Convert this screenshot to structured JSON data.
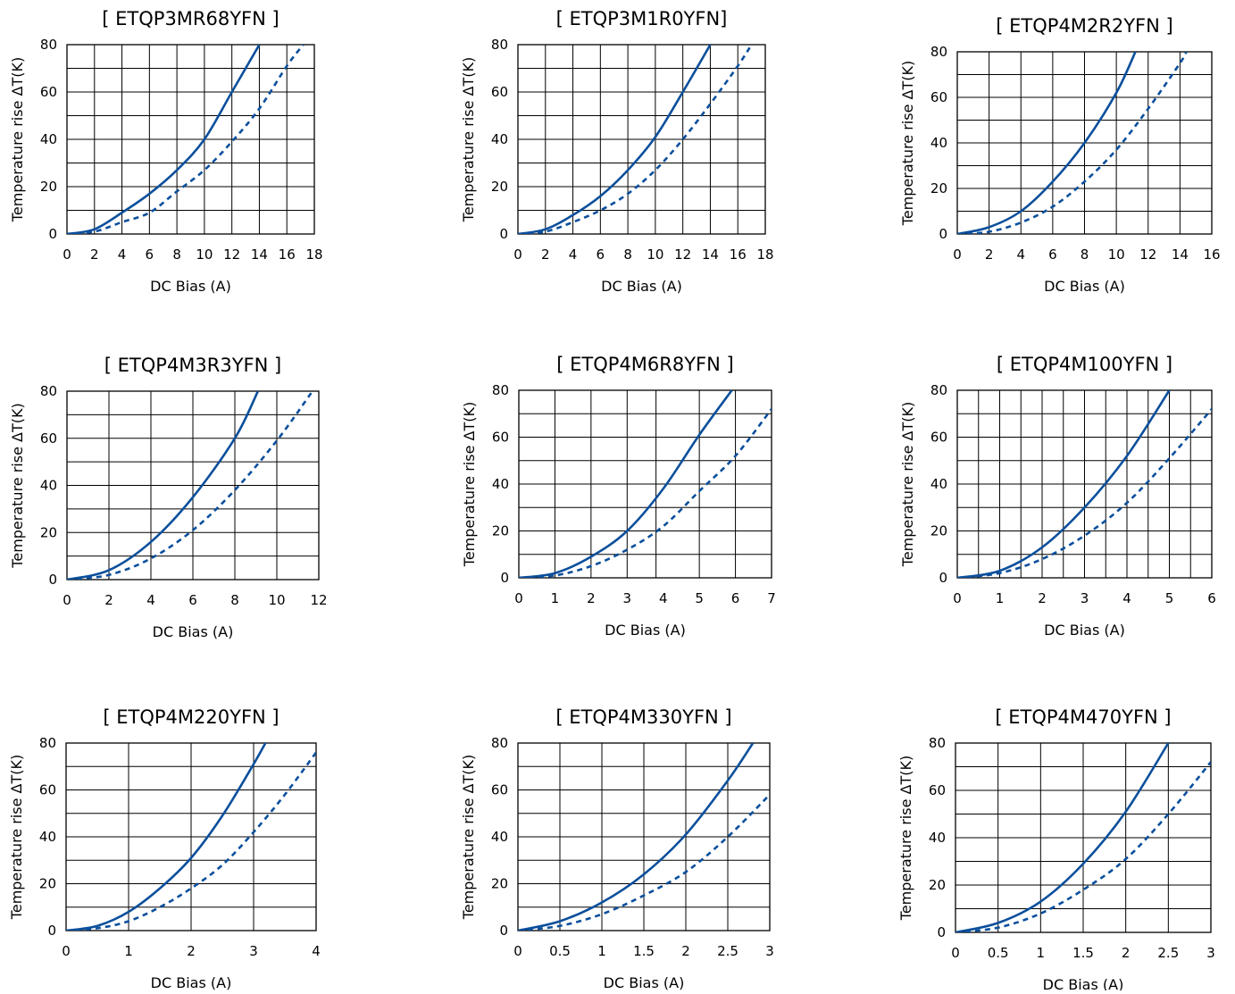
{
  "chart_data": [
    {
      "type": "line",
      "title": "[ ETQP3MR68YFN ]",
      "xlabel": "DC Bias (A)",
      "ylabel": "Temperature rise ΔT(K)",
      "xlim": [
        0,
        18
      ],
      "ylim": [
        0,
        80
      ],
      "x_ticks": [
        "0",
        "2",
        "4",
        "6",
        "8",
        "10",
        "12",
        "14",
        "16",
        "18"
      ],
      "y_ticks": [
        "0",
        "20",
        "40",
        "60",
        "80"
      ],
      "x_grid": [
        0,
        2,
        4,
        6,
        8,
        10,
        12,
        14,
        16,
        18
      ],
      "y_grid": [
        0,
        10,
        20,
        30,
        40,
        50,
        60,
        70,
        80
      ],
      "grid": true,
      "legend": "none",
      "series": [
        {
          "style": "solid",
          "x": [
            0,
            2,
            4,
            6,
            8,
            10,
            12,
            14
          ],
          "y": [
            0,
            2,
            9,
            17,
            27,
            40,
            60,
            80
          ]
        },
        {
          "style": "dashed",
          "x": [
            0,
            2,
            4,
            6,
            8,
            10,
            12,
            14,
            16,
            17.2
          ],
          "y": [
            0,
            1,
            5,
            9,
            18,
            27,
            39,
            53,
            71,
            80
          ]
        }
      ]
    },
    {
      "type": "line",
      "title": "[ ETQP3M1R0YFN]",
      "xlabel": "DC Bias (A)",
      "ylabel": "Temperature rise ΔT(K)",
      "xlim": [
        0,
        18
      ],
      "ylim": [
        0,
        80
      ],
      "x_ticks": [
        "0",
        "2",
        "4",
        "6",
        "8",
        "10",
        "12",
        "14",
        "16",
        "18"
      ],
      "y_ticks": [
        "0",
        "20",
        "40",
        "60",
        "80"
      ],
      "x_grid": [
        0,
        2,
        4,
        6,
        8,
        10,
        12,
        14,
        16,
        18
      ],
      "y_grid": [
        0,
        10,
        20,
        30,
        40,
        50,
        60,
        70,
        80
      ],
      "grid": true,
      "legend": "none",
      "series": [
        {
          "style": "solid",
          "x": [
            0,
            2,
            4,
            6,
            8,
            10,
            12,
            14
          ],
          "y": [
            0,
            2,
            8,
            16,
            27,
            41,
            60,
            80
          ]
        },
        {
          "style": "dashed",
          "x": [
            0,
            2,
            4,
            6,
            8,
            10,
            12,
            14,
            16,
            17
          ],
          "y": [
            0,
            1,
            5,
            10,
            17,
            27,
            40,
            55,
            71,
            80
          ]
        }
      ]
    },
    {
      "type": "line",
      "title": "[ ETQP4M2R2YFN ]",
      "xlabel": "DC Bias (A)",
      "ylabel": "Temperature rise ΔT(K)",
      "xlim": [
        0,
        16
      ],
      "ylim": [
        0,
        80
      ],
      "x_ticks": [
        "0",
        "2",
        "4",
        "6",
        "8",
        "10",
        "12",
        "14",
        "16"
      ],
      "y_ticks": [
        "0",
        "20",
        "40",
        "60",
        "80"
      ],
      "x_grid": [
        0,
        2,
        4,
        6,
        8,
        10,
        12,
        14,
        16
      ],
      "y_grid": [
        0,
        10,
        20,
        30,
        40,
        50,
        60,
        70,
        80
      ],
      "grid": true,
      "legend": "none",
      "series": [
        {
          "style": "solid",
          "x": [
            0,
            2,
            4,
            6,
            8,
            10,
            11.2
          ],
          "y": [
            0,
            3,
            10,
            23,
            40,
            62,
            80
          ]
        },
        {
          "style": "dashed",
          "x": [
            0,
            2,
            4,
            6,
            8,
            10,
            12,
            14,
            14.4
          ],
          "y": [
            0,
            1,
            5,
            12,
            23,
            37,
            55,
            75,
            80
          ]
        }
      ]
    },
    {
      "type": "line",
      "title": "[ ETQP4M3R3YFN ]",
      "xlabel": "DC Bias (A)",
      "ylabel": "Temperature rise ΔT(K)",
      "xlim": [
        0,
        12
      ],
      "ylim": [
        0,
        80
      ],
      "x_ticks": [
        "0",
        "2",
        "4",
        "6",
        "8",
        "10",
        "12"
      ],
      "y_ticks": [
        "0",
        "20",
        "40",
        "60",
        "80"
      ],
      "x_grid": [
        0,
        2,
        4,
        6,
        8,
        10,
        12
      ],
      "y_grid": [
        0,
        10,
        20,
        30,
        40,
        50,
        60,
        70,
        80
      ],
      "grid": true,
      "legend": "none",
      "series": [
        {
          "style": "solid",
          "x": [
            0,
            2,
            4,
            6,
            8,
            9.1
          ],
          "y": [
            0,
            4,
            16,
            35,
            60,
            80
          ]
        },
        {
          "style": "dashed",
          "x": [
            0,
            2,
            4,
            6,
            8,
            10,
            11.7
          ],
          "y": [
            0,
            2,
            9,
            21,
            38,
            59,
            80
          ]
        }
      ]
    },
    {
      "type": "line",
      "title": "[ ETQP4M6R8YFN ]",
      "xlabel": "DC Bias (A)",
      "ylabel": "Temperature rise ΔT(K)",
      "xlim": [
        0,
        7
      ],
      "ylim": [
        0,
        80
      ],
      "x_ticks": [
        "0",
        "1",
        "2",
        "3",
        "4",
        "5",
        "6",
        "7"
      ],
      "y_ticks": [
        "0",
        "20",
        "40",
        "60",
        "80"
      ],
      "x_grid": [
        0,
        1,
        2,
        3,
        3.8,
        5,
        6,
        7
      ],
      "y_grid": [
        0,
        10,
        20,
        30,
        40,
        50,
        60,
        70,
        80
      ],
      "grid": true,
      "legend": "none",
      "series": [
        {
          "style": "solid",
          "x": [
            0,
            1,
            2,
            3,
            4,
            5,
            5.9
          ],
          "y": [
            0,
            2,
            9,
            20,
            38,
            61,
            80
          ]
        },
        {
          "style": "dashed",
          "x": [
            0,
            1,
            2,
            3,
            4,
            5,
            6,
            7
          ],
          "y": [
            0,
            1,
            5,
            12,
            22,
            37,
            52,
            72
          ]
        }
      ]
    },
    {
      "type": "line",
      "title": "[ ETQP4M100YFN ]",
      "xlabel": "DC Bias (A)",
      "ylabel": "Temperature rise ΔT(K)",
      "xlim": [
        0,
        6
      ],
      "ylim": [
        0,
        80
      ],
      "x_ticks": [
        "0",
        "1",
        "2",
        "3",
        "4",
        "5",
        "6"
      ],
      "y_ticks": [
        "0",
        "20",
        "40",
        "60",
        "80"
      ],
      "x_grid": [
        0,
        0.5,
        1,
        1.5,
        2,
        2.5,
        3,
        3.5,
        4,
        4.5,
        5,
        5.5,
        6
      ],
      "y_grid": [
        0,
        10,
        20,
        30,
        40,
        50,
        60,
        70,
        80
      ],
      "grid": true,
      "legend": "none",
      "series": [
        {
          "style": "solid",
          "x": [
            0,
            1,
            2,
            3,
            4,
            5
          ],
          "y": [
            0,
            3,
            13,
            30,
            52,
            80
          ]
        },
        {
          "style": "dashed",
          "x": [
            0,
            1,
            2,
            3,
            4,
            5,
            6
          ],
          "y": [
            0,
            2,
            8,
            18,
            32,
            51,
            72
          ]
        }
      ]
    },
    {
      "type": "line",
      "title": "[ ETQP4M220YFN ]",
      "xlabel": "DC Bias (A)",
      "ylabel": "Temperature rise ΔT(K)",
      "xlim": [
        0,
        4
      ],
      "ylim": [
        0,
        80
      ],
      "x_ticks": [
        "0",
        "1",
        "2",
        "3",
        "4"
      ],
      "y_ticks": [
        "0",
        "20",
        "40",
        "60",
        "80"
      ],
      "x_grid": [
        0,
        1,
        2,
        3,
        4
      ],
      "y_grid": [
        0,
        10,
        20,
        30,
        40,
        50,
        60,
        70,
        80
      ],
      "grid": true,
      "legend": "none",
      "series": [
        {
          "style": "solid",
          "x": [
            0,
            0.5,
            1,
            1.5,
            2,
            2.5,
            3,
            3.25
          ],
          "y": [
            0,
            2,
            8,
            18,
            31,
            49,
            71,
            83
          ]
        },
        {
          "style": "dashed",
          "x": [
            0,
            0.5,
            1,
            1.5,
            2,
            2.5,
            3,
            3.5,
            4
          ],
          "y": [
            0,
            1,
            4,
            10,
            18,
            28,
            42,
            58,
            76
          ]
        }
      ]
    },
    {
      "type": "line",
      "title": "[ ETQP4M330YFN ]",
      "xlabel": "DC Bias (A)",
      "ylabel": "Temperature rise ΔT(K)",
      "xlim": [
        0,
        3
      ],
      "ylim": [
        0,
        80
      ],
      "x_ticks": [
        "0",
        "0.5",
        "1",
        "1.5",
        "2",
        "2.5",
        "3"
      ],
      "y_ticks": [
        "0",
        "20",
        "40",
        "60",
        "80"
      ],
      "x_grid": [
        0,
        0.5,
        1,
        1.5,
        2,
        2.5,
        3
      ],
      "y_grid": [
        0,
        10,
        20,
        30,
        40,
        50,
        60,
        70,
        80
      ],
      "grid": true,
      "legend": "none",
      "series": [
        {
          "style": "solid",
          "x": [
            0,
            0.5,
            1,
            1.5,
            2,
            2.5,
            2.8
          ],
          "y": [
            0,
            4,
            12,
            24,
            41,
            64,
            80
          ]
        },
        {
          "style": "dashed",
          "x": [
            0,
            0.5,
            1,
            1.5,
            2,
            2.5,
            3
          ],
          "y": [
            0,
            2,
            7,
            15,
            25,
            40,
            58
          ]
        }
      ]
    },
    {
      "type": "line",
      "title": "[ ETQP4M470YFN ]",
      "xlabel": "DC Bias (A)",
      "ylabel": "Temperature rise ΔT(K)",
      "xlim": [
        0,
        3
      ],
      "ylim": [
        0,
        80
      ],
      "x_ticks": [
        "0",
        "0.5",
        "1",
        "1.5",
        "2",
        "2.5",
        "3"
      ],
      "y_ticks": [
        "0",
        "20",
        "40",
        "60",
        "80"
      ],
      "x_grid": [
        0,
        0.5,
        1,
        1.5,
        2,
        2.5,
        3
      ],
      "y_grid": [
        0,
        10,
        20,
        30,
        40,
        50,
        60,
        70,
        80
      ],
      "grid": true,
      "legend": "none",
      "series": [
        {
          "style": "solid",
          "x": [
            0,
            0.5,
            1,
            1.5,
            2,
            2.5
          ],
          "y": [
            0,
            4,
            13,
            29,
            51,
            80
          ]
        },
        {
          "style": "dashed",
          "x": [
            0,
            0.5,
            1,
            1.5,
            2,
            2.5,
            3
          ],
          "y": [
            0,
            2,
            8,
            18,
            31,
            50,
            72
          ]
        }
      ]
    }
  ],
  "colors": {
    "line": "#0b4f9c",
    "grid": "#000000",
    "background": "#ffffff"
  }
}
